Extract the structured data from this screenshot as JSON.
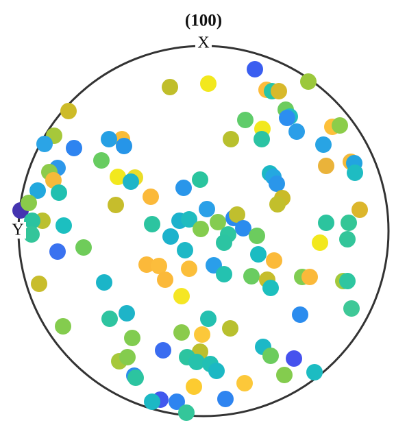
{
  "chart_data": {
    "type": "scatter",
    "title": "(100)",
    "xlabel": "X",
    "ylabel": "Y",
    "xlim": [
      -270,
      270
    ],
    "ylim": [
      -270,
      270
    ],
    "x": [
      75,
      153,
      -49,
      7,
      92,
      100,
      110,
      -197,
      120,
      126,
      122,
      61,
      86,
      85,
      136,
      188,
      199,
      40,
      -218,
      -232,
      -189,
      -119,
      -138,
      -116,
      -149,
      175,
      215,
      179,
      220,
      221,
      -213,
      -225,
      -219,
      -242,
      -211,
      -125,
      -100,
      -106,
      97,
      102,
      107,
      -5,
      -29,
      -77,
      115,
      108,
      -267,
      -255,
      -235,
      -250,
      -251,
      -204,
      -128,
      228,
      5,
      44,
      49,
      58,
      21,
      -35,
      -21,
      -75,
      -4,
      36,
      30,
      78,
      -48,
      179,
      212,
      210,
      170,
      -175,
      -213,
      -27,
      80,
      103,
      -83,
      -65,
      -56,
      -21,
      15,
      30,
      70,
      93,
      98,
      144,
      155,
      204,
      210,
      -240,
      -145,
      -32,
      216,
      141,
      -137,
      -112,
      7,
      39,
      -205,
      -104,
      -32,
      -2,
      -59,
      -5,
      -24,
      -10,
      10,
      19,
      87,
      98,
      132,
      118,
      162,
      -123,
      -111,
      -101,
      -99,
      -14,
      60,
      32,
      -63,
      -39,
      -75,
      -25
    ],
    "y": [
      236,
      218,
      210,
      215,
      206,
      204,
      204,
      175,
      177,
      167,
      165,
      162,
      149,
      134,
      145,
      152,
      154,
      134,
      139,
      127,
      121,
      134,
      134,
      124,
      103,
      126,
      101,
      95,
      99,
      85,
      92,
      86,
      74,
      59,
      56,
      79,
      78,
      72,
      84,
      79,
      69,
      75,
      63,
      50,
      48,
      39,
      30,
      41,
      15,
      15,
      -5,
      8,
      38,
      31,
      32,
      19,
      24,
      4,
      13,
      15,
      17,
      10,
      3,
      -5,
      -17,
      -7,
      -8,
      12,
      12,
      -12,
      -17,
      -24,
      -30,
      -28,
      -34,
      -43,
      -49,
      -51,
      -71,
      -55,
      -50,
      -63,
      -66,
      -71,
      -83,
      -67,
      -67,
      -73,
      -73,
      -77,
      -75,
      -95,
      -113,
      -122,
      -128,
      -120,
      -128,
      -142,
      -139,
      -156,
      -148,
      -151,
      -174,
      -176,
      -184,
      -191,
      -194,
      -204,
      -169,
      -182,
      -186,
      -210,
      -206,
      -190,
      -184,
      -211,
      -214,
      -227,
      -222,
      -245,
      -246,
      -249,
      -249,
      -265
    ],
    "colors": [
      "#3a5ef0",
      "#9bc83c",
      "#c0be2a",
      "#f2e81e",
      "#fdbc3a",
      "#27c4a8",
      "#d8b92b",
      "#cdbb28",
      "#6ccc5e",
      "#21bfc0",
      "#2c8ef0",
      "#5fcc6a",
      "#f2e81e",
      "#2bc3a3",
      "#2b9ee8",
      "#fdc03a",
      "#8ccd4a",
      "#b8c02e",
      "#a6c83a",
      "#2ba4e6",
      "#2e84f0",
      "#f8bc38",
      "#26a0e4",
      "#2695e8",
      "#67cc60",
      "#28a4e4",
      "#f2b93a",
      "#eab33a",
      "#22a4e0",
      "#1ebcc2",
      "#2c97ea",
      "#8dcb4a",
      "#f5ba3a",
      "#22a8de",
      "#20c0b0",
      "#f2e81e",
      "#eadd28",
      "#1eb5c8",
      "#1bb8c4",
      "#24a8e0",
      "#2a96ea",
      "#2ac49e",
      "#2996ea",
      "#fbb93a",
      "#cabb28",
      "#c2bf2c",
      "#4434b0",
      "#89cb4a",
      "#bbc030",
      "#2ac3a0",
      "#33c59a",
      "#1cbfc0",
      "#c6bd2c",
      "#dcb62c",
      "#2aa0e8",
      "#2a8aee",
      "#c0bf2e",
      "#2b8cee",
      "#85cc50",
      "#1cb2cc",
      "#20bcbf",
      "#2cc4a0",
      "#84cc4e",
      "#2ec6a0",
      "#2cc4a2",
      "#6ccc5e",
      "#1cb2cc",
      "#2cc49e",
      "#34c696",
      "#33c59a",
      "#f2e81e",
      "#6fcc5a",
      "#3a72f0",
      "#1eb8c6",
      "#1bbcc2",
      "#fbba3a",
      "#fbb93a",
      "#fcbd3c",
      "#fbb93a",
      "#fbbe3a",
      "#2a9eea",
      "#24c2b0",
      "#6acc60",
      "#c6bd2c",
      "#1dbfbe",
      "#7fcd52",
      "#fbb93a",
      "#a3c93c",
      "#2ec6a0",
      "#c8bd2c",
      "#1bb5c8",
      "#f5e624",
      "#3ec897",
      "#2b8cee",
      "#2ec4a0",
      "#1eb4c8",
      "#24c0b0",
      "#b8c02e",
      "#84cc4e",
      "#81cc50",
      "#8acb4c",
      "#fcc83a",
      "#3a6cf0",
      "#bcbf2e",
      "#2cc4a0",
      "#26c2ac",
      "#22c0b4",
      "#1cb8c4",
      "#1cb8c6",
      "#6ccc5e",
      "#4652ee",
      "#84cc4e",
      "#1cbcc2",
      "#a6c83a",
      "#84cc4e",
      "#2b8cee",
      "#2cc4a0",
      "#fccb30",
      "#fcc83a",
      "#2e84f0",
      "#4158ee",
      "#2e84f0",
      "#1cb8c4",
      "#34c69a"
    ]
  }
}
